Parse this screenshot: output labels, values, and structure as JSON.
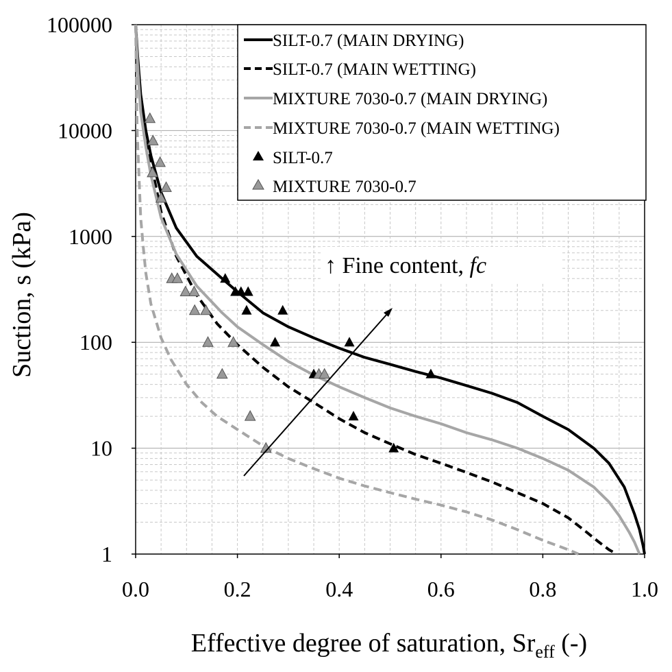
{
  "chart_data": {
    "type": "line",
    "xlabel": "Effective degree of saturation, Sr",
    "xlabel_sub": "eff",
    "xlabel_suffix": " (-)",
    "ylabel": "Suction, s (kPa)",
    "x_ticks": [
      "0.0",
      "0.2",
      "0.4",
      "0.6",
      "0.8",
      "1.0"
    ],
    "y_ticks": [
      "1",
      "10",
      "100",
      "1000",
      "10000",
      "100000"
    ],
    "xlim": [
      0,
      1
    ],
    "ylim": [
      1,
      100000
    ],
    "y_scale": "log",
    "grid": true,
    "legend_position": "top-right",
    "annotation": {
      "text": "↑ Fine content, ",
      "italic": "fc"
    },
    "series": [
      {
        "name": "SILT-0.7 (MAIN DRYING)",
        "kind": "line",
        "color": "#000000",
        "dash": "solid",
        "x": [
          0.0,
          0.004,
          0.01,
          0.02,
          0.03,
          0.05,
          0.08,
          0.12,
          0.17,
          0.2,
          0.25,
          0.3,
          0.35,
          0.4,
          0.45,
          0.5,
          0.55,
          0.6,
          0.65,
          0.7,
          0.75,
          0.8,
          0.85,
          0.9,
          0.93,
          0.96,
          0.98,
          0.99,
          0.997,
          1.0
        ],
        "y": [
          100000,
          50000,
          22000,
          10000,
          5800,
          2600,
          1200,
          650,
          400,
          300,
          190,
          140,
          110,
          88,
          72,
          62,
          53,
          46,
          39,
          33,
          27,
          20,
          15,
          10,
          7.2,
          4.3,
          2.4,
          1.7,
          1.2,
          1.0
        ]
      },
      {
        "name": "SILT-0.7 (MAIN WETTING)",
        "kind": "line",
        "color": "#000000",
        "dash": "dashed",
        "x": [
          0.0,
          0.003,
          0.01,
          0.02,
          0.03,
          0.05,
          0.08,
          0.12,
          0.16,
          0.2,
          0.25,
          0.3,
          0.35,
          0.4,
          0.45,
          0.5,
          0.55,
          0.6,
          0.65,
          0.7,
          0.75,
          0.8,
          0.85,
          0.88,
          0.91,
          0.93,
          0.945
        ],
        "y": [
          100000,
          50000,
          20000,
          9000,
          5000,
          1700,
          650,
          280,
          150,
          95,
          58,
          38,
          27,
          19,
          14,
          11,
          8.7,
          7.2,
          5.9,
          4.8,
          3.8,
          3.0,
          2.2,
          1.7,
          1.3,
          1.1,
          1.0
        ]
      },
      {
        "name": "MIXTURE 7030-0.7 (MAIN DRYING)",
        "kind": "line",
        "color": "#a6a6a6",
        "dash": "solid",
        "x": [
          0.0,
          0.004,
          0.01,
          0.02,
          0.03,
          0.05,
          0.08,
          0.12,
          0.17,
          0.2,
          0.25,
          0.3,
          0.35,
          0.4,
          0.45,
          0.5,
          0.55,
          0.6,
          0.65,
          0.7,
          0.75,
          0.8,
          0.85,
          0.9,
          0.93,
          0.95,
          0.97,
          0.98,
          0.99
        ],
        "y": [
          100000,
          40000,
          15000,
          7000,
          3800,
          1500,
          680,
          340,
          190,
          140,
          95,
          66,
          49,
          38,
          30,
          24,
          20,
          17,
          14,
          12,
          10,
          8,
          6.2,
          4.3,
          3.1,
          2.3,
          1.6,
          1.3,
          1.0
        ]
      },
      {
        "name": "MIXTURE 7030-0.7 (MAIN WETTING)",
        "kind": "line",
        "color": "#a6a6a6",
        "dash": "dashed",
        "x": [
          0.0,
          0.003,
          0.01,
          0.015,
          0.02,
          0.03,
          0.05,
          0.07,
          0.1,
          0.13,
          0.16,
          0.2,
          0.25,
          0.3,
          0.35,
          0.4,
          0.45,
          0.5,
          0.55,
          0.6,
          0.65,
          0.7,
          0.75,
          0.8,
          0.85,
          0.87
        ],
        "y": [
          100000,
          10000,
          1500,
          800,
          450,
          230,
          110,
          68,
          40,
          27,
          20,
          15,
          10.5,
          8,
          6.4,
          5.2,
          4.4,
          3.8,
          3.3,
          2.9,
          2.5,
          2.1,
          1.7,
          1.35,
          1.1,
          1.0
        ]
      },
      {
        "name": "SILT-0.7",
        "kind": "scatter",
        "color": "#000000",
        "points": [
          [
            0.176,
            400
          ],
          [
            0.196,
            300
          ],
          [
            0.207,
            300
          ],
          [
            0.221,
            300
          ],
          [
            0.218,
            200
          ],
          [
            0.289,
            200
          ],
          [
            0.274,
            100
          ],
          [
            0.42,
            100
          ],
          [
            0.35,
            50
          ],
          [
            0.58,
            50
          ],
          [
            0.428,
            20
          ],
          [
            0.507,
            10
          ]
        ]
      },
      {
        "name": "MIXTURE 7030-0.7",
        "kind": "scatter",
        "color": "#999999",
        "points": [
          [
            0.028,
            13000
          ],
          [
            0.034,
            8000
          ],
          [
            0.048,
            5000
          ],
          [
            0.06,
            2900
          ],
          [
            0.033,
            4000
          ],
          [
            0.05,
            2300
          ],
          [
            0.071,
            400
          ],
          [
            0.082,
            400
          ],
          [
            0.098,
            300
          ],
          [
            0.115,
            300
          ],
          [
            0.116,
            200
          ],
          [
            0.138,
            200
          ],
          [
            0.142,
            100
          ],
          [
            0.192,
            100
          ],
          [
            0.17,
            50
          ],
          [
            0.36,
            50
          ],
          [
            0.371,
            50
          ],
          [
            0.225,
            20
          ],
          [
            0.256,
            10
          ]
        ]
      }
    ]
  }
}
